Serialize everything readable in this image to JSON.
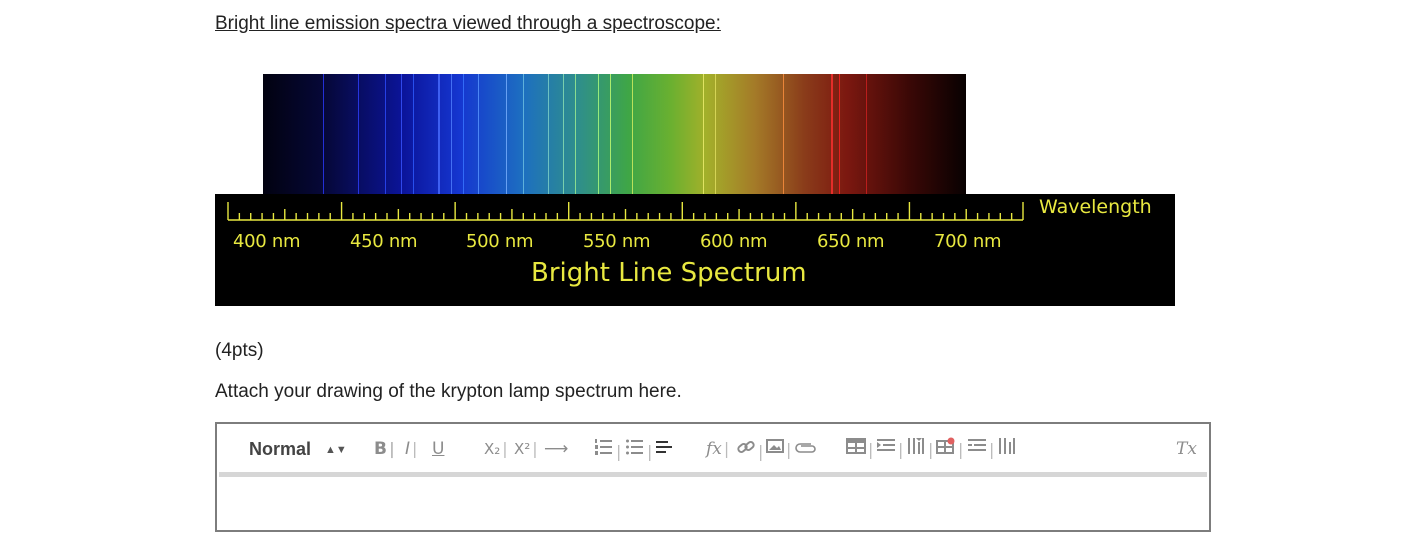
{
  "heading": "Bright line emission spectra viewed through a spectroscope:",
  "figure": {
    "tick_labels": [
      "400 nm",
      "450 nm",
      "500 nm",
      "550 nm",
      "600 nm",
      "650 nm",
      "700 nm"
    ],
    "axis_word": "Wavelength",
    "title": "Bright Line Spectrum"
  },
  "points_text": "(4pts)",
  "instruction_text": "Attach your drawing of the krypton lamp spectrum here.",
  "editor": {
    "format_select": "Normal",
    "toolbar": {
      "bold": "B",
      "italic": "I",
      "underline": "U",
      "subscript": "X₂",
      "superscript": "X²",
      "arrow": "⟶",
      "clear_format": "Tx"
    },
    "content": ""
  }
}
